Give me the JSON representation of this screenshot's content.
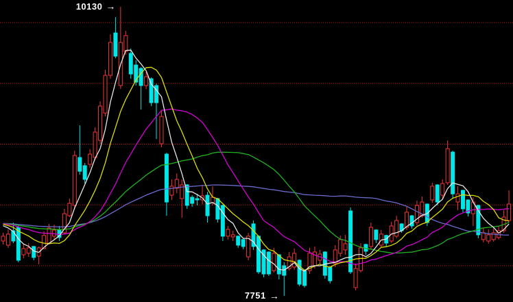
{
  "chart_data": {
    "type": "candlestick",
    "title": "",
    "background": "#000000",
    "grid": {
      "orientation": "horizontal",
      "style": "dotted",
      "color": "#cc1111",
      "prices_estimated": [
        10000,
        9500,
        9000,
        8500,
        8000
      ]
    },
    "annotations": {
      "high": {
        "text": "10130",
        "arrow": "→",
        "price": 10130
      },
      "low": {
        "text": "7751",
        "arrow": "→",
        "price": 7751
      }
    },
    "colors": {
      "up": "#f23636",
      "down": "#00e6e6",
      "label": "#ffffff"
    },
    "moving_averages": [
      {
        "name": "MA5",
        "window": 5,
        "color": "#e8e8e8"
      },
      {
        "name": "MA10",
        "window": 10,
        "color": "#dede00"
      },
      {
        "name": "MA20",
        "window": 20,
        "color": "#d400d4"
      },
      {
        "name": "MA35",
        "window": 35,
        "color": "#1fb31f"
      },
      {
        "name": "MA60",
        "window": 60,
        "color": "#6b6bd0"
      }
    ],
    "ma_prehistory_seed_estimated": 8350,
    "candles": [
      [
        8203,
        8271,
        8175,
        8243
      ],
      [
        8169,
        8299,
        8147,
        8260
      ],
      [
        8288,
        8355,
        8186,
        8203
      ],
      [
        8316,
        8327,
        8028,
        8045
      ],
      [
        8090,
        8175,
        8062,
        8141
      ],
      [
        8102,
        8186,
        8073,
        8147
      ],
      [
        8158,
        8163,
        8045,
        8068
      ],
      [
        8079,
        8158,
        8011,
        8147
      ],
      [
        8141,
        8282,
        8135,
        8249
      ],
      [
        8186,
        8344,
        8175,
        8310
      ],
      [
        8243,
        8338,
        8215,
        8293
      ],
      [
        8294,
        8327,
        8203,
        8232
      ],
      [
        8271,
        8468,
        8260,
        8428
      ],
      [
        8411,
        8552,
        8400,
        8513
      ],
      [
        8496,
        8946,
        8468,
        8907
      ],
      [
        8890,
        9155,
        8749,
        8777
      ],
      [
        8823,
        8845,
        8676,
        8710
      ],
      [
        8834,
        8958,
        8806,
        8918
      ],
      [
        8890,
        9138,
        8868,
        9099
      ],
      [
        9031,
        9352,
        9003,
        9313
      ],
      [
        9256,
        9611,
        9228,
        9566
      ],
      [
        9566,
        9904,
        9538,
        9837
      ],
      [
        9915,
        10045,
        9707,
        9724
      ],
      [
        9482,
        10130,
        9454,
        9837
      ],
      [
        9763,
        9932,
        9735,
        9893
      ],
      [
        9747,
        9786,
        9538,
        9577
      ],
      [
        9651,
        9690,
        9482,
        9510
      ],
      [
        9623,
        9634,
        9285,
        9482
      ],
      [
        9482,
        9594,
        9454,
        9555
      ],
      [
        9538,
        9549,
        9313,
        9341
      ],
      [
        9482,
        9498,
        9042,
        9341
      ],
      [
        9003,
        9273,
        8975,
        9228
      ],
      [
        8918,
        8929,
        8411,
        8524
      ],
      [
        8580,
        8710,
        8541,
        8654
      ],
      [
        8637,
        8760,
        8597,
        8710
      ],
      [
        8552,
        8710,
        8394,
        8665
      ],
      [
        8665,
        8671,
        8468,
        8496
      ],
      [
        8563,
        8580,
        8485,
        8513
      ],
      [
        8552,
        8591,
        8496,
        8541
      ],
      [
        8541,
        8665,
        8507,
        8575
      ],
      [
        8580,
        8608,
        8355,
        8411
      ],
      [
        8518,
        8654,
        8496,
        8563
      ],
      [
        8552,
        8558,
        8355,
        8383
      ],
      [
        8496,
        8502,
        8203,
        8243
      ],
      [
        8243,
        8327,
        8215,
        8299
      ],
      [
        8237,
        8288,
        8203,
        8254
      ],
      [
        8243,
        8249,
        8147,
        8169
      ],
      [
        8215,
        8221,
        8135,
        8158
      ],
      [
        8073,
        8271,
        8045,
        8243
      ],
      [
        8344,
        8372,
        8130,
        8158
      ],
      [
        8243,
        8249,
        7932,
        7949
      ],
      [
        8130,
        8136,
        7904,
        7932
      ],
      [
        8113,
        8119,
        7915,
        7932
      ],
      [
        7960,
        8147,
        7943,
        8102
      ],
      [
        8090,
        8096,
        7887,
        7932
      ],
      [
        8000,
        8028,
        7751,
        7921
      ],
      [
        7977,
        8113,
        7960,
        8073
      ],
      [
        7989,
        8141,
        7966,
        8102
      ],
      [
        8045,
        8051,
        7831,
        7848
      ],
      [
        7960,
        7966,
        7820,
        7837
      ],
      [
        7960,
        8147,
        7932,
        8102
      ],
      [
        8000,
        8158,
        7977,
        8113
      ],
      [
        8045,
        8130,
        8017,
        8096
      ],
      [
        8113,
        8119,
        7893,
        7921
      ],
      [
        7989,
        7995,
        7854,
        7876
      ],
      [
        8017,
        8169,
        7989,
        8130
      ],
      [
        8102,
        8248,
        8073,
        8215
      ],
      [
        8130,
        8254,
        8090,
        8181
      ],
      [
        8451,
        8479,
        7932,
        7949
      ],
      [
        7820,
        8017,
        7798,
        7977
      ],
      [
        7960,
        8186,
        7943,
        8147
      ],
      [
        8175,
        8181,
        8090,
        8119
      ],
      [
        8158,
        8355,
        8135,
        8316
      ],
      [
        8294,
        8299,
        8186,
        8215
      ],
      [
        8169,
        8294,
        8147,
        8260
      ],
      [
        8249,
        8254,
        8158,
        8186
      ],
      [
        8203,
        8361,
        8186,
        8327
      ],
      [
        8243,
        8411,
        8226,
        8372
      ],
      [
        8344,
        8350,
        8271,
        8288
      ],
      [
        8316,
        8485,
        8294,
        8440
      ],
      [
        8411,
        8417,
        8305,
        8327
      ],
      [
        8355,
        8535,
        8332,
        8496
      ],
      [
        8411,
        8569,
        8394,
        8524
      ],
      [
        8507,
        8513,
        8327,
        8355
      ],
      [
        8541,
        8682,
        8518,
        8654
      ],
      [
        8665,
        8671,
        8496,
        8524
      ],
      [
        8580,
        8710,
        8552,
        8676
      ],
      [
        8682,
        9031,
        8665,
        8963
      ],
      [
        8935,
        8946,
        8552,
        8591
      ],
      [
        8524,
        8654,
        8457,
        8591
      ],
      [
        8620,
        8625,
        8440,
        8468
      ],
      [
        8541,
        8546,
        8405,
        8434
      ],
      [
        8428,
        8563,
        8327,
        8524
      ],
      [
        8496,
        8502,
        8226,
        8254
      ],
      [
        8215,
        8310,
        8192,
        8271
      ],
      [
        8203,
        8299,
        8181,
        8254
      ],
      [
        8215,
        8316,
        8198,
        8271
      ],
      [
        8232,
        8327,
        8215,
        8288
      ],
      [
        8288,
        8457,
        8271,
        8400
      ],
      [
        8372,
        8620,
        8355,
        8507
      ]
    ]
  }
}
